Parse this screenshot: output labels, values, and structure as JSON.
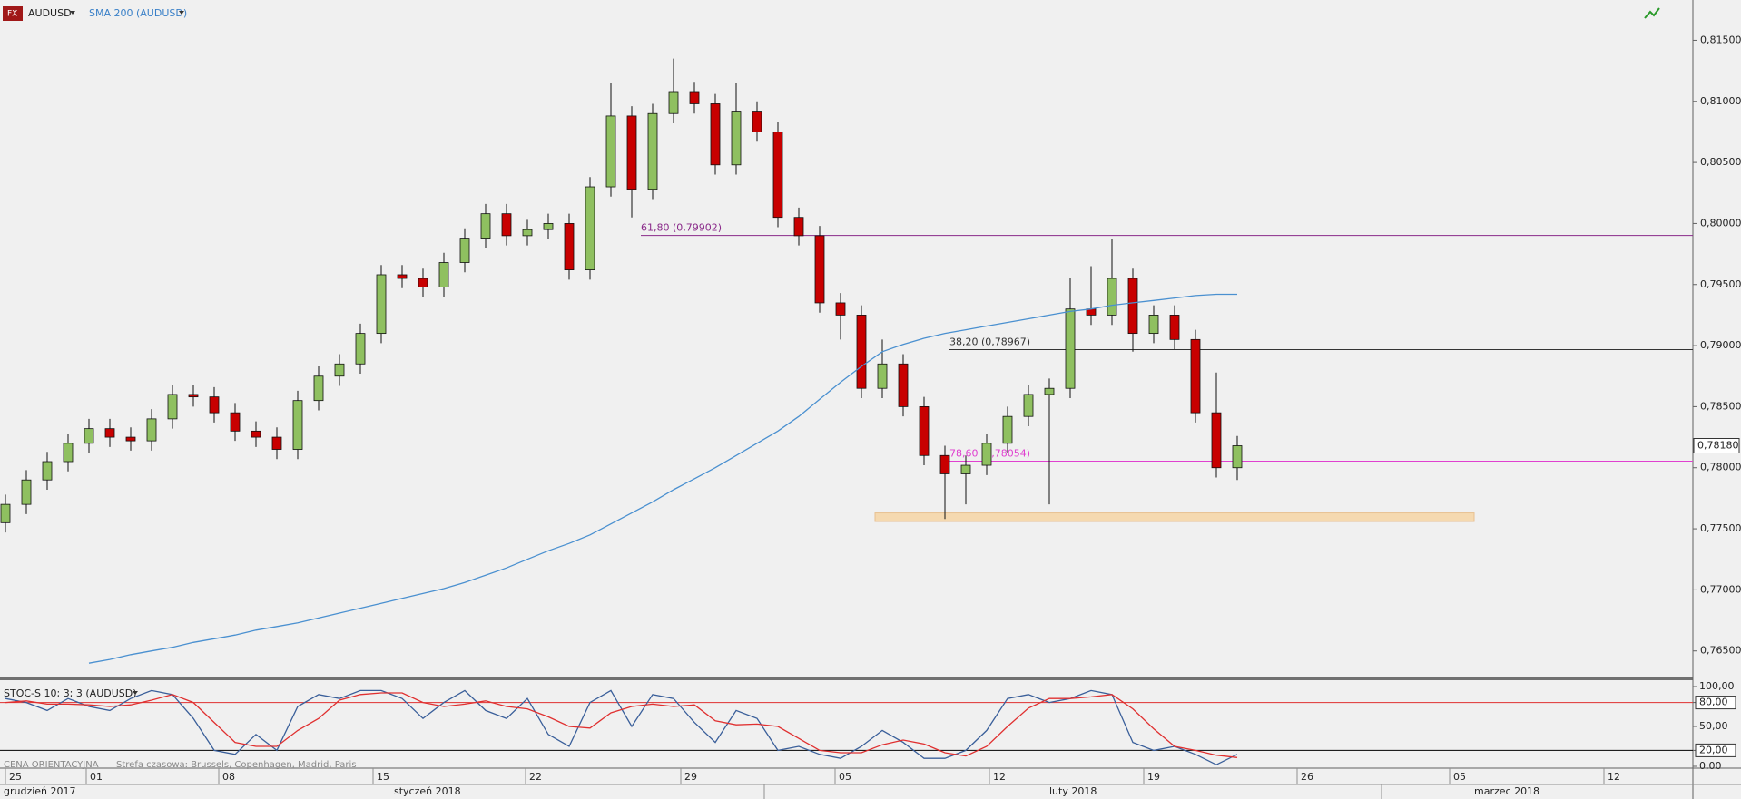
{
  "chart_data": {
    "type": "candlestick",
    "symbol": "AUDUSD",
    "open": [
      0.7755,
      0.777,
      0.779,
      0.7805,
      0.782,
      0.7832,
      0.7825,
      0.7822,
      0.784,
      0.786,
      0.7858,
      0.7845,
      0.783,
      0.7825,
      0.7815,
      0.7855,
      0.7875,
      0.7885,
      0.791,
      0.7958,
      0.7955,
      0.7948,
      0.7968,
      0.7988,
      0.8008,
      0.799,
      0.7995,
      0.8,
      0.7962,
      0.803,
      0.8088,
      0.8028,
      0.809,
      0.8108,
      0.8098,
      0.8048,
      0.8092,
      0.8075,
      0.8005,
      0.799,
      0.7935,
      0.7925,
      0.7865,
      0.7885,
      0.785,
      0.781,
      0.7795,
      0.7802,
      0.782,
      0.7842,
      0.786,
      0.7865,
      0.793,
      0.7925,
      0.7955,
      0.791,
      0.7925,
      0.7905,
      0.7845,
      0.78
    ],
    "high": [
      0.7778,
      0.7798,
      0.7813,
      0.7828,
      0.784,
      0.784,
      0.7833,
      0.7848,
      0.7868,
      0.7868,
      0.7866,
      0.7853,
      0.7838,
      0.7833,
      0.7863,
      0.7883,
      0.7893,
      0.7918,
      0.7966,
      0.7966,
      0.7963,
      0.7976,
      0.7996,
      0.8016,
      0.8016,
      0.8003,
      0.8008,
      0.8008,
      0.8038,
      0.8115,
      0.8096,
      0.8098,
      0.8135,
      0.8116,
      0.8106,
      0.8115,
      0.81,
      0.8083,
      0.8013,
      0.7998,
      0.7943,
      0.7933,
      0.7905,
      0.7893,
      0.7858,
      0.7818,
      0.781,
      0.7828,
      0.785,
      0.7868,
      0.7873,
      0.7955,
      0.7965,
      0.7987,
      0.7963,
      0.7933,
      0.7933,
      0.7913,
      0.7878,
      0.7826
    ],
    "low": [
      0.7747,
      0.7762,
      0.7782,
      0.7797,
      0.7812,
      0.7817,
      0.7814,
      0.7814,
      0.7832,
      0.785,
      0.7837,
      0.7822,
      0.7817,
      0.7807,
      0.7807,
      0.7847,
      0.7867,
      0.7877,
      0.7902,
      0.7947,
      0.794,
      0.794,
      0.796,
      0.798,
      0.7982,
      0.7982,
      0.7987,
      0.7954,
      0.7954,
      0.8022,
      0.8005,
      0.802,
      0.8082,
      0.809,
      0.804,
      0.804,
      0.8067,
      0.7997,
      0.7982,
      0.7927,
      0.7905,
      0.7857,
      0.7857,
      0.7842,
      0.7802,
      0.7758,
      0.777,
      0.7794,
      0.7812,
      0.7834,
      0.777,
      0.7857,
      0.7917,
      0.7917,
      0.7895,
      0.7902,
      0.7897,
      0.7837,
      0.7792,
      0.779
    ],
    "close": [
      0.777,
      0.779,
      0.7805,
      0.782,
      0.7832,
      0.7825,
      0.7822,
      0.784,
      0.786,
      0.7858,
      0.7845,
      0.783,
      0.7825,
      0.7815,
      0.7855,
      0.7875,
      0.7885,
      0.791,
      0.7958,
      0.7955,
      0.7948,
      0.7968,
      0.7988,
      0.8008,
      0.799,
      0.7995,
      0.8,
      0.7962,
      0.803,
      0.8088,
      0.8028,
      0.809,
      0.8108,
      0.8098,
      0.8048,
      0.8092,
      0.8075,
      0.8005,
      0.799,
      0.7935,
      0.7925,
      0.7865,
      0.7885,
      0.785,
      0.781,
      0.7795,
      0.7802,
      0.782,
      0.7842,
      0.786,
      0.7865,
      0.793,
      0.7925,
      0.7955,
      0.791,
      0.7925,
      0.7905,
      0.7845,
      0.78,
      0.7818
    ],
    "up_color": "#8fc060",
    "down_color": "#c80000",
    "overlay": {
      "name": "SMA 200 (AUDUSD)",
      "color": "#4a90d0",
      "values": [
        null,
        null,
        null,
        null,
        0.764,
        0.7643,
        0.7647,
        0.765,
        0.7653,
        0.7657,
        0.766,
        0.7663,
        0.7667,
        0.767,
        0.7673,
        0.7677,
        0.7681,
        0.7685,
        0.7689,
        0.7693,
        0.7697,
        0.7701,
        0.7706,
        0.7712,
        0.7718,
        0.7725,
        0.7732,
        0.7738,
        0.7745,
        0.7754,
        0.7763,
        0.7772,
        0.7782,
        0.7791,
        0.78,
        0.781,
        0.782,
        0.783,
        0.7842,
        0.7856,
        0.787,
        0.7883,
        0.7895,
        0.7901,
        0.7906,
        0.791,
        0.7913,
        0.7916,
        0.7919,
        0.7922,
        0.7925,
        0.7928,
        0.793,
        0.7933,
        0.7935,
        0.7937,
        0.7939,
        0.7941,
        0.7942,
        0.7942
      ]
    },
    "ylim": [
      0.7629,
      0.8183
    ],
    "yticks": [
      {
        "value": 0.765,
        "label": "0,76500"
      },
      {
        "value": 0.77,
        "label": "0,77000"
      },
      {
        "value": 0.775,
        "label": "0,77500"
      },
      {
        "value": 0.78,
        "label": "0,78000"
      },
      {
        "value": 0.785,
        "label": "0,78500"
      },
      {
        "value": 0.79,
        "label": "0,79000"
      },
      {
        "value": 0.795,
        "label": "0,79500"
      },
      {
        "value": 0.8,
        "label": "0,80000"
      },
      {
        "value": 0.805,
        "label": "0,80500"
      },
      {
        "value": 0.81,
        "label": "0,81000"
      },
      {
        "value": 0.815,
        "label": "0,81500"
      }
    ],
    "levels": [
      {
        "value": 0.79902,
        "label": "61,80 (0,79902)",
        "color": "#8a2a8a"
      },
      {
        "value": 0.78967,
        "label": "38,20 (0,78967)",
        "color": "#333333"
      },
      {
        "value": 0.78054,
        "label": "78,60 (0,78054)",
        "color": "#e040d0"
      }
    ],
    "zone": [
      0.7756,
      0.7763
    ],
    "last_price": {
      "value": 0.7818,
      "label": "0,78180"
    },
    "indicator": {
      "name": "STOC-S 10; 3; 3 (AUDUSD)",
      "series": [
        {
          "color": "#3a5f9a",
          "values": [
            85,
            80,
            70,
            85,
            75,
            70,
            85,
            95,
            90,
            60,
            20,
            15,
            40,
            20,
            75,
            90,
            85,
            95,
            95,
            85,
            60,
            80,
            95,
            70,
            60,
            85,
            40,
            25,
            80,
            95,
            50,
            90,
            85,
            55,
            30,
            70,
            60,
            20,
            25,
            15,
            10,
            25,
            45,
            30,
            10,
            10,
            20,
            45,
            85,
            90,
            80,
            85,
            95,
            90,
            30,
            20,
            25,
            15,
            2,
            15
          ]
        },
        {
          "color": "#e03030",
          "values": [
            80,
            82,
            78,
            78,
            77,
            75,
            77,
            83,
            90,
            80,
            55,
            30,
            25,
            25,
            45,
            60,
            83,
            90,
            92,
            92,
            80,
            75,
            78,
            82,
            75,
            72,
            62,
            50,
            48,
            67,
            75,
            78,
            75,
            77,
            57,
            52,
            53,
            50,
            35,
            20,
            17,
            17,
            27,
            33,
            28,
            17,
            13,
            25,
            50,
            73,
            85,
            85,
            87,
            90,
            72,
            47,
            25,
            20,
            14,
            11
          ]
        }
      ],
      "ylim": [
        0,
        100
      ],
      "yticks": [
        {
          "value": 0,
          "label": "0,00"
        },
        {
          "value": 20,
          "label": "20,00"
        },
        {
          "value": 50,
          "label": "50,00"
        },
        {
          "value": 80,
          "label": "80,00"
        },
        {
          "value": 100,
          "label": "100,00"
        }
      ],
      "levels": [
        {
          "value": 80,
          "color": "#e03030"
        },
        {
          "value": 20,
          "color": "#000000"
        }
      ]
    },
    "date_labels": [
      "25",
      "01",
      "08",
      "15",
      "22",
      "29",
      "05",
      "12",
      "19",
      "26",
      "05",
      "12"
    ],
    "month_labels": [
      "grudzień 2017",
      "styczeń 2018",
      "luty 2018",
      "marzec 2018"
    ],
    "footer": {
      "price_type": "CENA ORIENTACYJNA",
      "timezone": "Strefa czasowa: Brussels, Copenhagen, Madrid, Paris"
    }
  }
}
